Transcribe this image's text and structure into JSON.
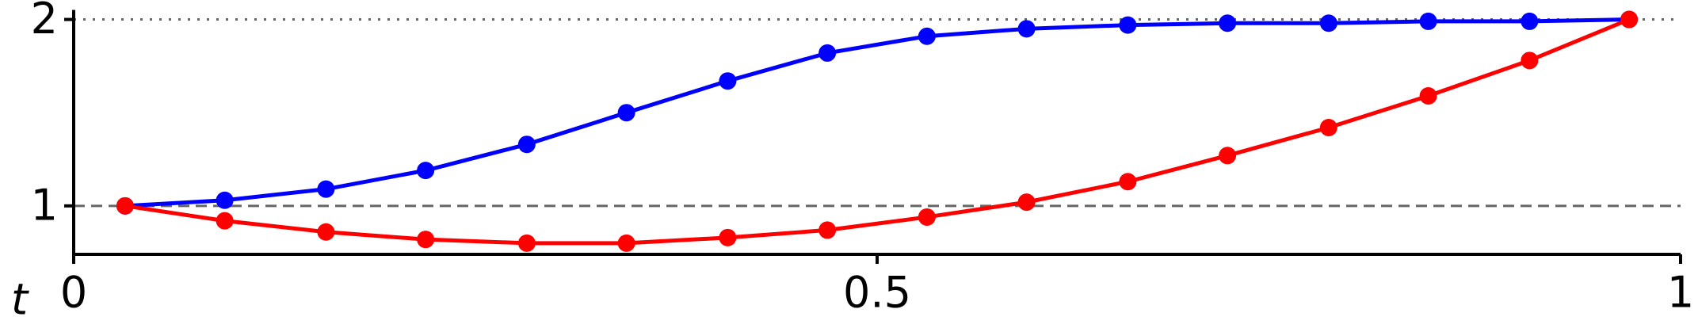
{
  "chart_data": {
    "type": "line",
    "x_label": "t",
    "x": [
      0.032,
      0.094,
      0.157,
      0.219,
      0.282,
      0.344,
      0.407,
      0.469,
      0.531,
      0.593,
      0.656,
      0.718,
      0.781,
      0.843,
      0.906,
      0.968
    ],
    "series": [
      {
        "color": "#0000ff",
        "values": [
          1,
          1.03,
          1.09,
          1.19,
          1.33,
          1.5,
          1.67,
          1.82,
          1.91,
          1.95,
          1.97,
          1.98,
          1.98,
          1.99,
          1.99,
          2.0
        ]
      },
      {
        "color": "#ff0000",
        "values": [
          1,
          0.92,
          0.86,
          0.82,
          0.8,
          0.8,
          0.83,
          0.87,
          0.94,
          1.02,
          1.13,
          1.27,
          1.42,
          1.59,
          1.78,
          2.0
        ]
      }
    ],
    "xlim": [
      0,
      1
    ],
    "xticks": [
      0,
      0.5,
      1
    ],
    "ylim": [
      0.74,
      2.03
    ],
    "yticks": [
      1,
      2
    ],
    "hlines": [
      {
        "y": 2,
        "style": "dotted"
      },
      {
        "y": 1,
        "style": "dashed"
      }
    ]
  }
}
